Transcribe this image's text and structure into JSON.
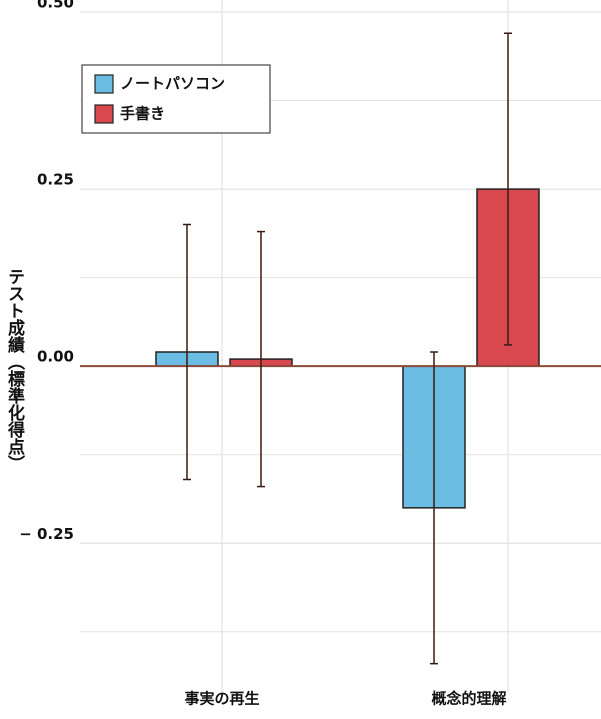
{
  "chart_data": {
    "type": "bar",
    "ylabel": "テスト成績（標準化得点）",
    "categories": [
      "事実の再生",
      "概念的理解"
    ],
    "series": [
      {
        "name": "ノートパソコン",
        "color": "#6bbde3",
        "values": [
          0.02,
          -0.2
        ],
        "errors": [
          0.18,
          0.22
        ]
      },
      {
        "name": "手書き",
        "color": "#d9474f",
        "values": [
          0.01,
          0.25
        ],
        "errors": [
          0.18,
          0.22
        ]
      }
    ],
    "ylim": [
      -0.46,
      0.5
    ],
    "yticks": [
      {
        "value": 0.5,
        "label": "0.50"
      },
      0.25,
      {
        "value": 0,
        "label": "0.00"
      },
      {
        "value": -0.25,
        "label": "− 0.25"
      }
    ],
    "minor_yticks": [
      0.375,
      0.125,
      -0.125,
      -0.375
    ],
    "grid": true,
    "legend": "upper left"
  }
}
